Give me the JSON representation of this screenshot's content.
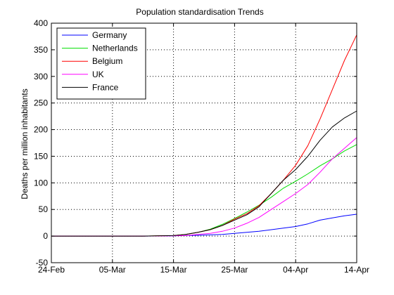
{
  "chart_data": {
    "type": "line",
    "title": "Population standardisation Trends",
    "xlabel": "",
    "ylabel": "Deaths per million inhabitants",
    "x_tick_labels": [
      "24-Feb",
      "05-Mar",
      "15-Mar",
      "25-Mar",
      "04-Apr",
      "14-Apr"
    ],
    "x_tick_days": [
      0,
      10,
      20,
      30,
      40,
      50
    ],
    "xlim_days": [
      0,
      50
    ],
    "ylim": [
      -50,
      400
    ],
    "y_ticks": [
      -50,
      0,
      50,
      100,
      150,
      200,
      250,
      300,
      350,
      400
    ],
    "grid": true,
    "legend_position": "top-left",
    "series": [
      {
        "name": "Germany",
        "color": "#0000ff",
        "x": [
          0,
          10,
          15,
          20,
          24,
          28,
          30,
          34,
          38,
          40,
          42,
          44,
          46,
          48,
          50
        ],
        "y": [
          0,
          0,
          0,
          0.5,
          1.5,
          3,
          5,
          9,
          15,
          18,
          23,
          30,
          34,
          38,
          41
        ]
      },
      {
        "name": "Netherlands",
        "color": "#00dd00",
        "x": [
          0,
          10,
          15,
          20,
          22,
          24,
          26,
          28,
          30,
          32,
          34,
          36,
          38,
          40,
          42,
          44,
          46,
          48,
          50
        ],
        "y": [
          0,
          0,
          0,
          1,
          3,
          7,
          13,
          22,
          33,
          45,
          58,
          73,
          90,
          103,
          117,
          132,
          145,
          160,
          172
        ]
      },
      {
        "name": "Belgium",
        "color": "#ff0000",
        "x": [
          0,
          10,
          15,
          20,
          22,
          24,
          26,
          28,
          30,
          32,
          34,
          36,
          38,
          40,
          42,
          44,
          46,
          48,
          50
        ],
        "y": [
          0,
          0,
          0,
          1,
          3,
          7,
          12,
          20,
          32,
          42,
          57,
          80,
          105,
          133,
          170,
          220,
          275,
          330,
          378
        ]
      },
      {
        "name": "UK",
        "color": "#ff00ff",
        "x": [
          0,
          10,
          15,
          20,
          22,
          24,
          26,
          28,
          30,
          32,
          34,
          36,
          38,
          40,
          42,
          44,
          46,
          48,
          50
        ],
        "y": [
          0,
          0,
          0,
          0.5,
          1,
          3,
          5,
          9,
          15,
          24,
          35,
          50,
          65,
          80,
          97,
          120,
          145,
          165,
          185
        ]
      },
      {
        "name": "France",
        "color": "#000000",
        "x": [
          0,
          10,
          15,
          20,
          22,
          24,
          26,
          28,
          30,
          32,
          34,
          36,
          38,
          40,
          42,
          44,
          46,
          48,
          50
        ],
        "y": [
          0,
          0,
          0,
          1,
          3,
          7,
          12,
          20,
          30,
          40,
          55,
          80,
          105,
          125,
          150,
          180,
          205,
          222,
          235
        ]
      }
    ]
  }
}
